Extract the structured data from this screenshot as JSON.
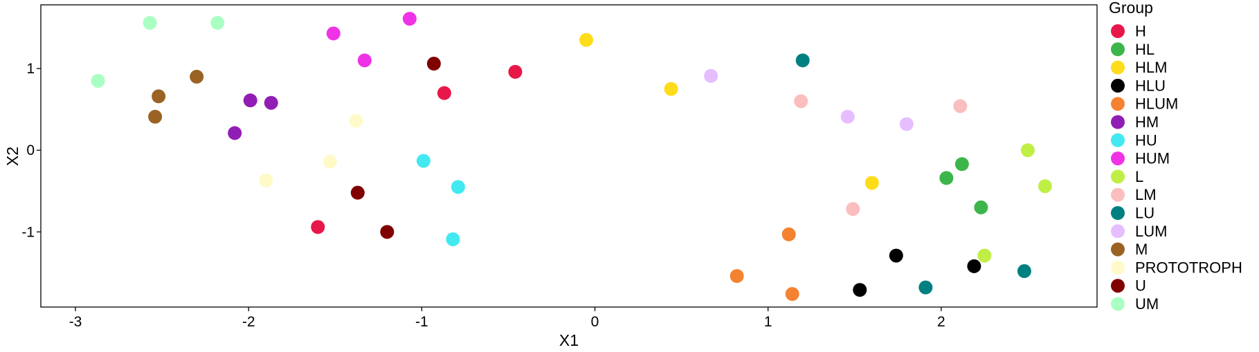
{
  "chart_data": {
    "type": "scatter",
    "title": "",
    "xlabel": "X1",
    "ylabel": "X2",
    "xlim": [
      -3.2,
      2.9
    ],
    "ylim": [
      -1.92,
      1.78
    ],
    "x_ticks": [
      -3,
      -2,
      -1,
      0,
      1,
      2
    ],
    "y_ticks": [
      -1,
      0,
      1
    ],
    "grid": false,
    "legend": {
      "title": "Group",
      "position": "right"
    },
    "series": [
      {
        "name": "H",
        "color": "#E8174A",
        "points": [
          [
            -0.46,
            0.96
          ],
          [
            -0.87,
            0.7
          ],
          [
            -1.6,
            -0.94
          ]
        ]
      },
      {
        "name": "HL",
        "color": "#3DB54A",
        "points": [
          [
            2.12,
            -0.17
          ],
          [
            2.03,
            -0.34
          ],
          [
            2.23,
            -0.7
          ]
        ]
      },
      {
        "name": "HLM",
        "color": "#FFDC1A",
        "points": [
          [
            -0.05,
            1.35
          ],
          [
            0.44,
            0.75
          ],
          [
            1.6,
            -0.4
          ]
        ]
      },
      {
        "name": "HLU",
        "color": "#000000",
        "points": [
          [
            1.74,
            -1.29
          ],
          [
            2.19,
            -1.42
          ],
          [
            1.53,
            -1.71
          ]
        ]
      },
      {
        "name": "HLUM",
        "color": "#F58231",
        "points": [
          [
            1.12,
            -1.03
          ],
          [
            0.82,
            -1.54
          ],
          [
            1.14,
            -1.76
          ]
        ]
      },
      {
        "name": "HM",
        "color": "#911EB4",
        "points": [
          [
            -1.99,
            0.61
          ],
          [
            -1.87,
            0.58
          ],
          [
            -2.08,
            0.21
          ]
        ]
      },
      {
        "name": "HU",
        "color": "#42E9F0",
        "points": [
          [
            -0.99,
            -0.13
          ],
          [
            -0.79,
            -0.45
          ],
          [
            -0.82,
            -1.09
          ]
        ]
      },
      {
        "name": "HUM",
        "color": "#F032E6",
        "points": [
          [
            -1.07,
            1.61
          ],
          [
            -1.51,
            1.43
          ],
          [
            -1.33,
            1.1
          ]
        ]
      },
      {
        "name": "L",
        "color": "#BFEF45",
        "points": [
          [
            2.5,
            0.0
          ],
          [
            2.6,
            -0.44
          ],
          [
            2.25,
            -1.29
          ]
        ]
      },
      {
        "name": "LM",
        "color": "#FABEBE",
        "points": [
          [
            1.19,
            0.6
          ],
          [
            2.11,
            0.54
          ],
          [
            1.49,
            -0.72
          ]
        ]
      },
      {
        "name": "LU",
        "color": "#008080",
        "points": [
          [
            1.2,
            1.1
          ],
          [
            2.48,
            -1.48
          ],
          [
            1.91,
            -1.68
          ]
        ]
      },
      {
        "name": "LUM",
        "color": "#E6BEFF",
        "points": [
          [
            0.67,
            0.91
          ],
          [
            1.46,
            0.41
          ],
          [
            1.8,
            0.32
          ]
        ]
      },
      {
        "name": "M",
        "color": "#9A6324",
        "points": [
          [
            -2.3,
            0.9
          ],
          [
            -2.52,
            0.66
          ],
          [
            -2.54,
            0.41
          ]
        ]
      },
      {
        "name": "PROTOTROPH",
        "color": "#FFFAC8",
        "points": [
          [
            -1.38,
            0.36
          ],
          [
            -1.53,
            -0.14
          ],
          [
            -1.9,
            -0.37
          ]
        ]
      },
      {
        "name": "U",
        "color": "#800000",
        "points": [
          [
            -0.93,
            1.06
          ],
          [
            -1.37,
            -0.52
          ],
          [
            -1.2,
            -1.0
          ]
        ]
      },
      {
        "name": "UM",
        "color": "#AAFFC3",
        "points": [
          [
            -2.57,
            1.56
          ],
          [
            -2.18,
            1.56
          ],
          [
            -2.87,
            0.85
          ]
        ]
      }
    ]
  }
}
